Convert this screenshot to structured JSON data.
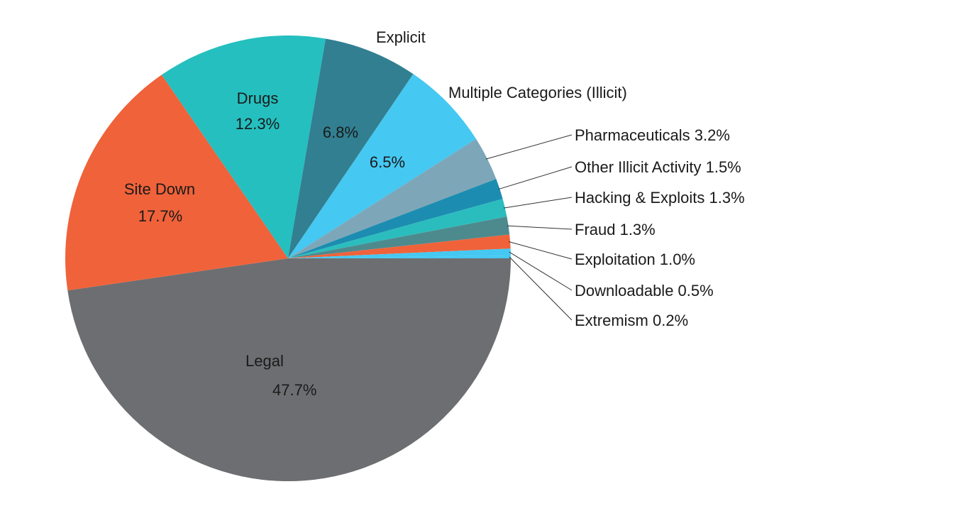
{
  "chart_data": {
    "type": "pie",
    "title": "",
    "slices": [
      {
        "label": "Legal",
        "value_text": "47.7%",
        "value": 47.7,
        "color": "#6d6e71"
      },
      {
        "label": "Site Down",
        "value_text": "17.7%",
        "value": 17.7,
        "color": "#f0623a"
      },
      {
        "label": "Drugs",
        "value_text": "12.3%",
        "value": 12.3,
        "color": "#25bfbf"
      },
      {
        "label": "Explicit",
        "value_text": "6.8%",
        "value": 6.8,
        "color": "#317f91"
      },
      {
        "label": "Multiple Categories (Illicit)",
        "value_text": "6.5%",
        "value": 6.5,
        "color": "#45c8f1"
      },
      {
        "label": "Pharmaceuticals 3.2%",
        "value_text": "",
        "value": 3.2,
        "color": "#7da7b8"
      },
      {
        "label": "Other Illicit Activity 1.5%",
        "value_text": "",
        "value": 1.5,
        "color": "#1c8db1"
      },
      {
        "label": "Hacking & Exploits 1.3%",
        "value_text": "",
        "value": 1.3,
        "color": "#2bbdbd"
      },
      {
        "label": "Fraud 1.3%",
        "value_text": "",
        "value": 1.3,
        "color": "#4d8a8e"
      },
      {
        "label": "Exploitation 1.0%",
        "value_text": "",
        "value": 1.0,
        "color": "#f0623a"
      },
      {
        "label": "Downloadable 0.5%",
        "value_text": "",
        "value": 0.5,
        "color": "#45c8f1"
      },
      {
        "label": "Extremism 0.2%",
        "value_text": "",
        "value": 0.2,
        "color": "#45c8f1"
      }
    ]
  }
}
